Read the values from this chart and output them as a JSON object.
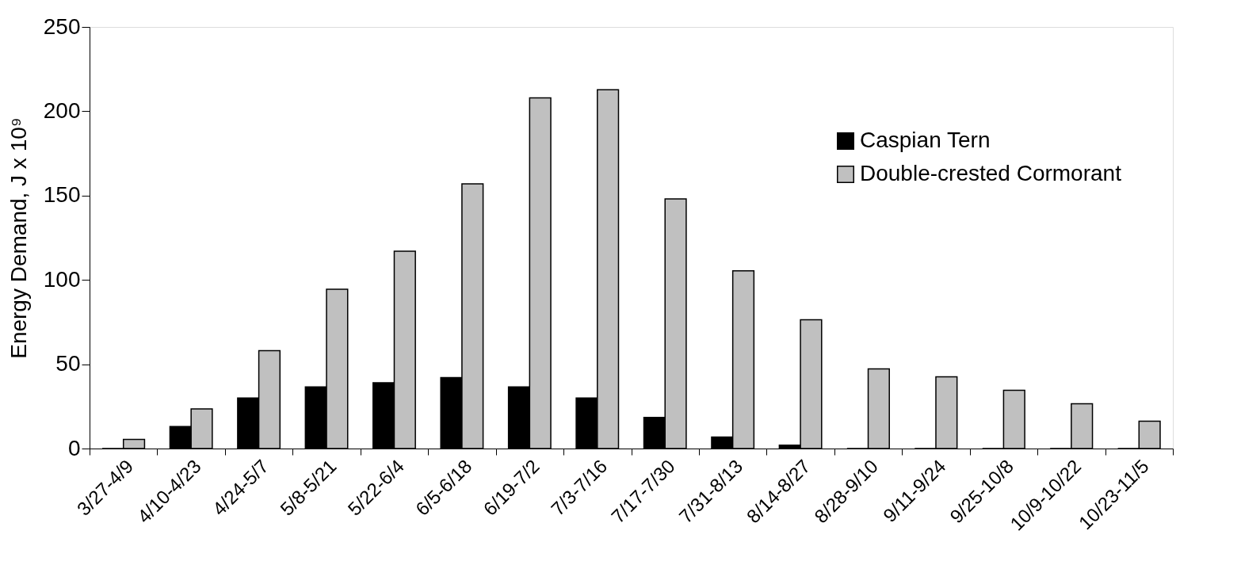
{
  "chart_data": {
    "type": "bar",
    "ylabel": "Energy Demand, J x 10⁹",
    "categories": [
      "3/27-4/9",
      "4/10-4/23",
      "4/24-5/7",
      "5/8-5/21",
      "5/22-6/4",
      "6/5-6/18",
      "6/19-7/2",
      "7/3-7/16",
      "7/17-7/30",
      "7/31-8/13",
      "8/14-8/27",
      "8/28-9/10",
      "9/11-9/24",
      "9/25-10/8",
      "10/9-10/22",
      "10/23-11/5"
    ],
    "series": [
      {
        "name": "Caspian Tern",
        "color": "#000000",
        "values": [
          0,
          13,
          30,
          36.5,
          39,
          42,
          36.5,
          30,
          18.5,
          6.8,
          2,
          0,
          0,
          0,
          0,
          0
        ]
      },
      {
        "name": "Double-crested Cormorant",
        "color": "#c0c0c0",
        "values": [
          5.4,
          23.5,
          58,
          94.4,
          117,
          157,
          208,
          212.7,
          148,
          105.4,
          76.4,
          47.2,
          42.5,
          34.5,
          26.5,
          16.2
        ]
      }
    ],
    "ylim": [
      0,
      250
    ],
    "yticks": [
      0,
      50,
      100,
      150,
      200,
      250
    ],
    "grid": false,
    "legend": "top right"
  }
}
